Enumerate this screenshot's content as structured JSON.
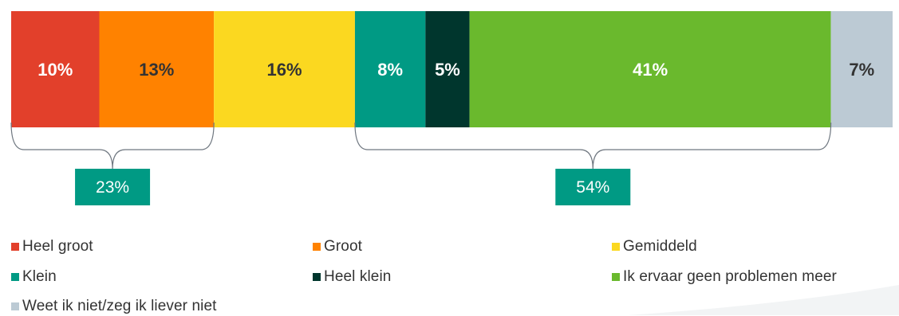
{
  "chart_data": {
    "type": "bar",
    "orientation": "horizontal-stacked",
    "categories": [
      "Heel groot",
      "Groot",
      "Gemiddeld",
      "Klein",
      "Heel klein",
      "Ik ervaar geen problemen meer",
      "Weet ik niet/zeg ik liever niet"
    ],
    "values": [
      10,
      13,
      16,
      8,
      5,
      41,
      7
    ],
    "data_labels": [
      "10%",
      "13%",
      "16%",
      "8%",
      "5%",
      "41%",
      "7%"
    ],
    "label_colors": [
      "#ffffff",
      "#333333",
      "#333333",
      "#ffffff",
      "#ffffff",
      "#ffffff",
      "#333333"
    ],
    "colors": [
      "#E2402B",
      "#FF8200",
      "#FBD820",
      "#009A84",
      "#00362D",
      "#6AB92D",
      "#BCCAD4"
    ],
    "groups": [
      {
        "from": 0,
        "to": 1,
        "label": "23%"
      },
      {
        "from": 3,
        "to": 5,
        "label": "54%"
      }
    ],
    "group_box_color": "#009A84",
    "legend": {
      "position": "bottom",
      "columns": 3
    }
  }
}
